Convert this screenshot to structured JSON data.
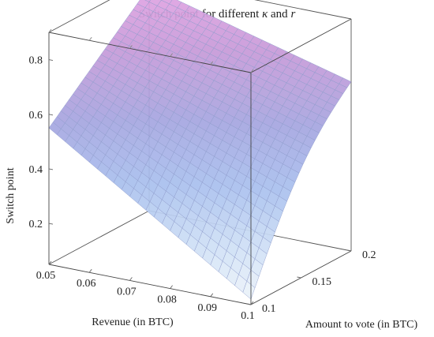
{
  "chart_data": {
    "type": "surface",
    "title": "Switch point for different",
    "title_kappa": "κ",
    "title_and": "and",
    "title_r": "r",
    "xlabel": "Revenue (in BTC)",
    "ylabel": "Amount to vote (in BTC)",
    "zlabel": "Switch point",
    "xlim": [
      0.05,
      0.1
    ],
    "ylim": [
      0.1,
      0.2
    ],
    "zlim": [
      0.05,
      0.9
    ],
    "xticks": [
      "0.05",
      "0.06",
      "0.07",
      "0.08",
      "0.09",
      "0.1"
    ],
    "yticks": [
      "0.1",
      "0.15",
      "0.2"
    ],
    "zticks": [
      "0.2",
      "0.4",
      "0.6",
      "0.8"
    ],
    "grid_size": 25,
    "corner_values": {
      "revenue_0.05_vote_0.1": 0.55,
      "revenue_0.05_vote_0.2": 0.87,
      "revenue_0.1_vote_0.1": 0.07,
      "revenue_0.1_vote_0.2": 0.67
    },
    "colormap": [
      "#f2f7fb",
      "#cfe0f5",
      "#a9c0ee",
      "#a6a6e0",
      "#c79ad8",
      "#e8a6e6"
    ],
    "grid": true
  }
}
